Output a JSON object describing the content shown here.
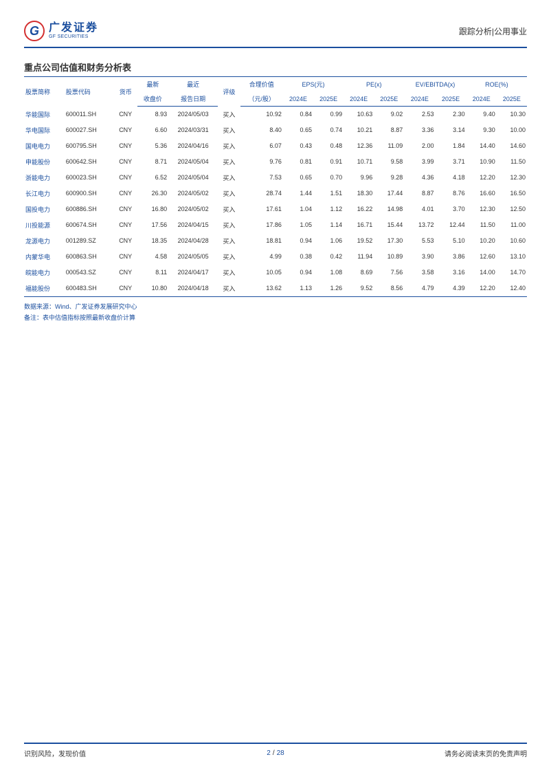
{
  "header": {
    "logo_cn": "广发证券",
    "logo_en": "GF SECURITIES",
    "right_text": "跟踪分析|公用事业"
  },
  "section_title": "重点公司估值和财务分析表",
  "table": {
    "head_row1": {
      "name": "股票简称",
      "code": "股票代码",
      "currency": "货币",
      "price": "最新",
      "date": "最近",
      "rating": "评级",
      "fair": "合理价值",
      "eps": "EPS(元)",
      "pe": "PE(x)",
      "ev": "EV/EBITDA(x)",
      "roe": "ROE(%)"
    },
    "head_row2": {
      "price": "收盘价",
      "date": "报告日期",
      "fair": "（元/股）",
      "y24": "2024E",
      "y25": "2025E"
    },
    "rows": [
      {
        "name": "华能国际",
        "code": "600011.SH",
        "ccy": "CNY",
        "price": "8.93",
        "date": "2024/05/03",
        "rating": "买入",
        "fair": "10.92",
        "eps24": "0.84",
        "eps25": "0.99",
        "pe24": "10.63",
        "pe25": "9.02",
        "ev24": "2.53",
        "ev25": "2.30",
        "roe24": "9.40",
        "roe25": "10.30"
      },
      {
        "name": "华电国际",
        "code": "600027.SH",
        "ccy": "CNY",
        "price": "6.60",
        "date": "2024/03/31",
        "rating": "买入",
        "fair": "8.40",
        "eps24": "0.65",
        "eps25": "0.74",
        "pe24": "10.21",
        "pe25": "8.87",
        "ev24": "3.36",
        "ev25": "3.14",
        "roe24": "9.30",
        "roe25": "10.00"
      },
      {
        "name": "国电电力",
        "code": "600795.SH",
        "ccy": "CNY",
        "price": "5.36",
        "date": "2024/04/16",
        "rating": "买入",
        "fair": "6.07",
        "eps24": "0.43",
        "eps25": "0.48",
        "pe24": "12.36",
        "pe25": "11.09",
        "ev24": "2.00",
        "ev25": "1.84",
        "roe24": "14.40",
        "roe25": "14.60"
      },
      {
        "name": "申能股份",
        "code": "600642.SH",
        "ccy": "CNY",
        "price": "8.71",
        "date": "2024/05/04",
        "rating": "买入",
        "fair": "9.76",
        "eps24": "0.81",
        "eps25": "0.91",
        "pe24": "10.71",
        "pe25": "9.58",
        "ev24": "3.99",
        "ev25": "3.71",
        "roe24": "10.90",
        "roe25": "11.50"
      },
      {
        "name": "浙能电力",
        "code": "600023.SH",
        "ccy": "CNY",
        "price": "6.52",
        "date": "2024/05/04",
        "rating": "买入",
        "fair": "7.53",
        "eps24": "0.65",
        "eps25": "0.70",
        "pe24": "9.96",
        "pe25": "9.28",
        "ev24": "4.36",
        "ev25": "4.18",
        "roe24": "12.20",
        "roe25": "12.30"
      },
      {
        "name": "长江电力",
        "code": "600900.SH",
        "ccy": "CNY",
        "price": "26.30",
        "date": "2024/05/02",
        "rating": "买入",
        "fair": "28.74",
        "eps24": "1.44",
        "eps25": "1.51",
        "pe24": "18.30",
        "pe25": "17.44",
        "ev24": "8.87",
        "ev25": "8.76",
        "roe24": "16.60",
        "roe25": "16.50"
      },
      {
        "name": "国投电力",
        "code": "600886.SH",
        "ccy": "CNY",
        "price": "16.80",
        "date": "2024/05/02",
        "rating": "买入",
        "fair": "17.61",
        "eps24": "1.04",
        "eps25": "1.12",
        "pe24": "16.22",
        "pe25": "14.98",
        "ev24": "4.01",
        "ev25": "3.70",
        "roe24": "12.30",
        "roe25": "12.50"
      },
      {
        "name": "川投能源",
        "code": "600674.SH",
        "ccy": "CNY",
        "price": "17.56",
        "date": "2024/04/15",
        "rating": "买入",
        "fair": "17.86",
        "eps24": "1.05",
        "eps25": "1.14",
        "pe24": "16.71",
        "pe25": "15.44",
        "ev24": "13.72",
        "ev25": "12.44",
        "roe24": "11.50",
        "roe25": "11.00"
      },
      {
        "name": "龙源电力",
        "code": "001289.SZ",
        "ccy": "CNY",
        "price": "18.35",
        "date": "2024/04/28",
        "rating": "买入",
        "fair": "18.81",
        "eps24": "0.94",
        "eps25": "1.06",
        "pe24": "19.52",
        "pe25": "17.30",
        "ev24": "5.53",
        "ev25": "5.10",
        "roe24": "10.20",
        "roe25": "10.60"
      },
      {
        "name": "内蒙华电",
        "code": "600863.SH",
        "ccy": "CNY",
        "price": "4.58",
        "date": "2024/05/05",
        "rating": "买入",
        "fair": "4.99",
        "eps24": "0.38",
        "eps25": "0.42",
        "pe24": "11.94",
        "pe25": "10.89",
        "ev24": "3.90",
        "ev25": "3.86",
        "roe24": "12.60",
        "roe25": "13.10"
      },
      {
        "name": "皖能电力",
        "code": "000543.SZ",
        "ccy": "CNY",
        "price": "8.11",
        "date": "2024/04/17",
        "rating": "买入",
        "fair": "10.05",
        "eps24": "0.94",
        "eps25": "1.08",
        "pe24": "8.69",
        "pe25": "7.56",
        "ev24": "3.58",
        "ev25": "3.16",
        "roe24": "14.00",
        "roe25": "14.70"
      },
      {
        "name": "福能股份",
        "code": "600483.SH",
        "ccy": "CNY",
        "price": "10.80",
        "date": "2024/04/18",
        "rating": "买入",
        "fair": "13.62",
        "eps24": "1.13",
        "eps25": "1.26",
        "pe24": "9.52",
        "pe25": "8.56",
        "ev24": "4.79",
        "ev25": "4.39",
        "roe24": "12.20",
        "roe25": "12.40"
      }
    ]
  },
  "notes": {
    "source_label": "数据来源：",
    "source_text": "Wind、广发证券发展研究中心",
    "remark_label": "备注：",
    "remark_text": "表中估值指标按照最新收盘价计算"
  },
  "footer": {
    "left": "识别风险，发现价值",
    "right": "请务必阅读末页的免责声明",
    "page_current": "2",
    "page_total": "28"
  }
}
